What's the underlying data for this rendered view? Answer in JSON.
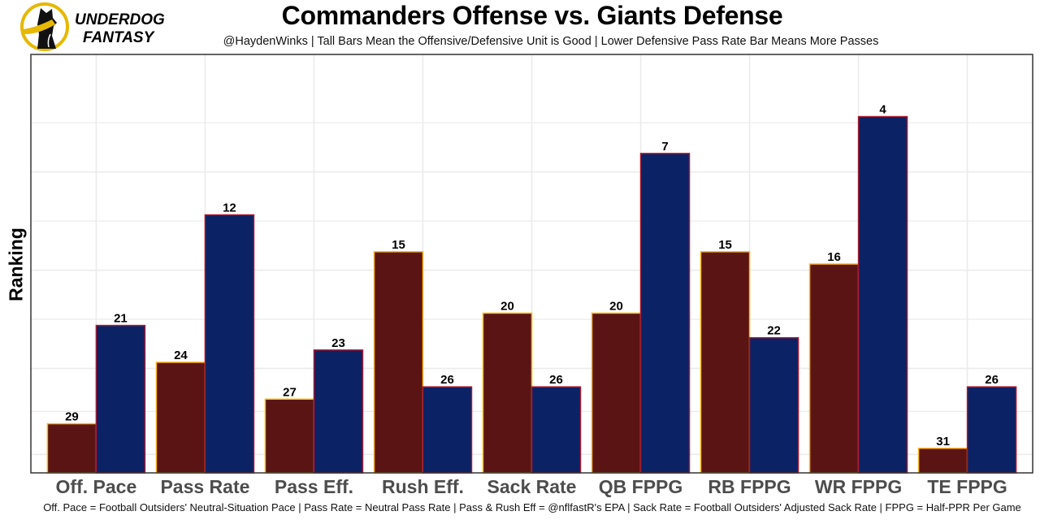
{
  "logo": {
    "line1": "UNDERDOG",
    "line2": "FANTASY",
    "icon": "dog-silhouette-icon"
  },
  "colors": {
    "offense_fill": "#5a1414",
    "offense_stroke": "#ffb612",
    "defense_fill": "#0b2265",
    "defense_stroke": "#a71930",
    "grid": "#ebebeb",
    "panel_border": "#333333",
    "logo_gold": "#e6b800"
  },
  "chart_data": {
    "type": "bar",
    "title": "Commanders Offense vs. Giants Defense",
    "subtitle": "@HaydenWinks | Tall Bars Mean the Offensive/Defensive Unit is Good | Lower Defensive Pass Rate Bar Means More Passes",
    "caption": "Off. Pace = Football Outsiders' Neutral-Situation Pace | Pass Rate = Neutral Pass Rate | Pass & Rush Eff = @nflfastR's EPA | Sack Rate = Football Outsiders' Adjusted Sack Rate | FPPG = Half-PPR Per Game",
    "xlabel": "",
    "ylabel": "Ranking",
    "y_reversed": true,
    "ylim": [
      33,
      0
    ],
    "grid": true,
    "legend": "none",
    "categories": [
      "Off. Pace",
      "Pass Rate",
      "Pass Eff.",
      "Rush Eff.",
      "Sack Rate",
      "QB FPPG",
      "RB FPPG",
      "WR FPPG",
      "TE FPPG"
    ],
    "series": [
      {
        "name": "Commanders Offense",
        "values": [
          29,
          24,
          27,
          15,
          20,
          20,
          15,
          16,
          31
        ]
      },
      {
        "name": "Giants Defense",
        "values": [
          21,
          12,
          23,
          26,
          26,
          7,
          22,
          4,
          26
        ]
      }
    ]
  }
}
